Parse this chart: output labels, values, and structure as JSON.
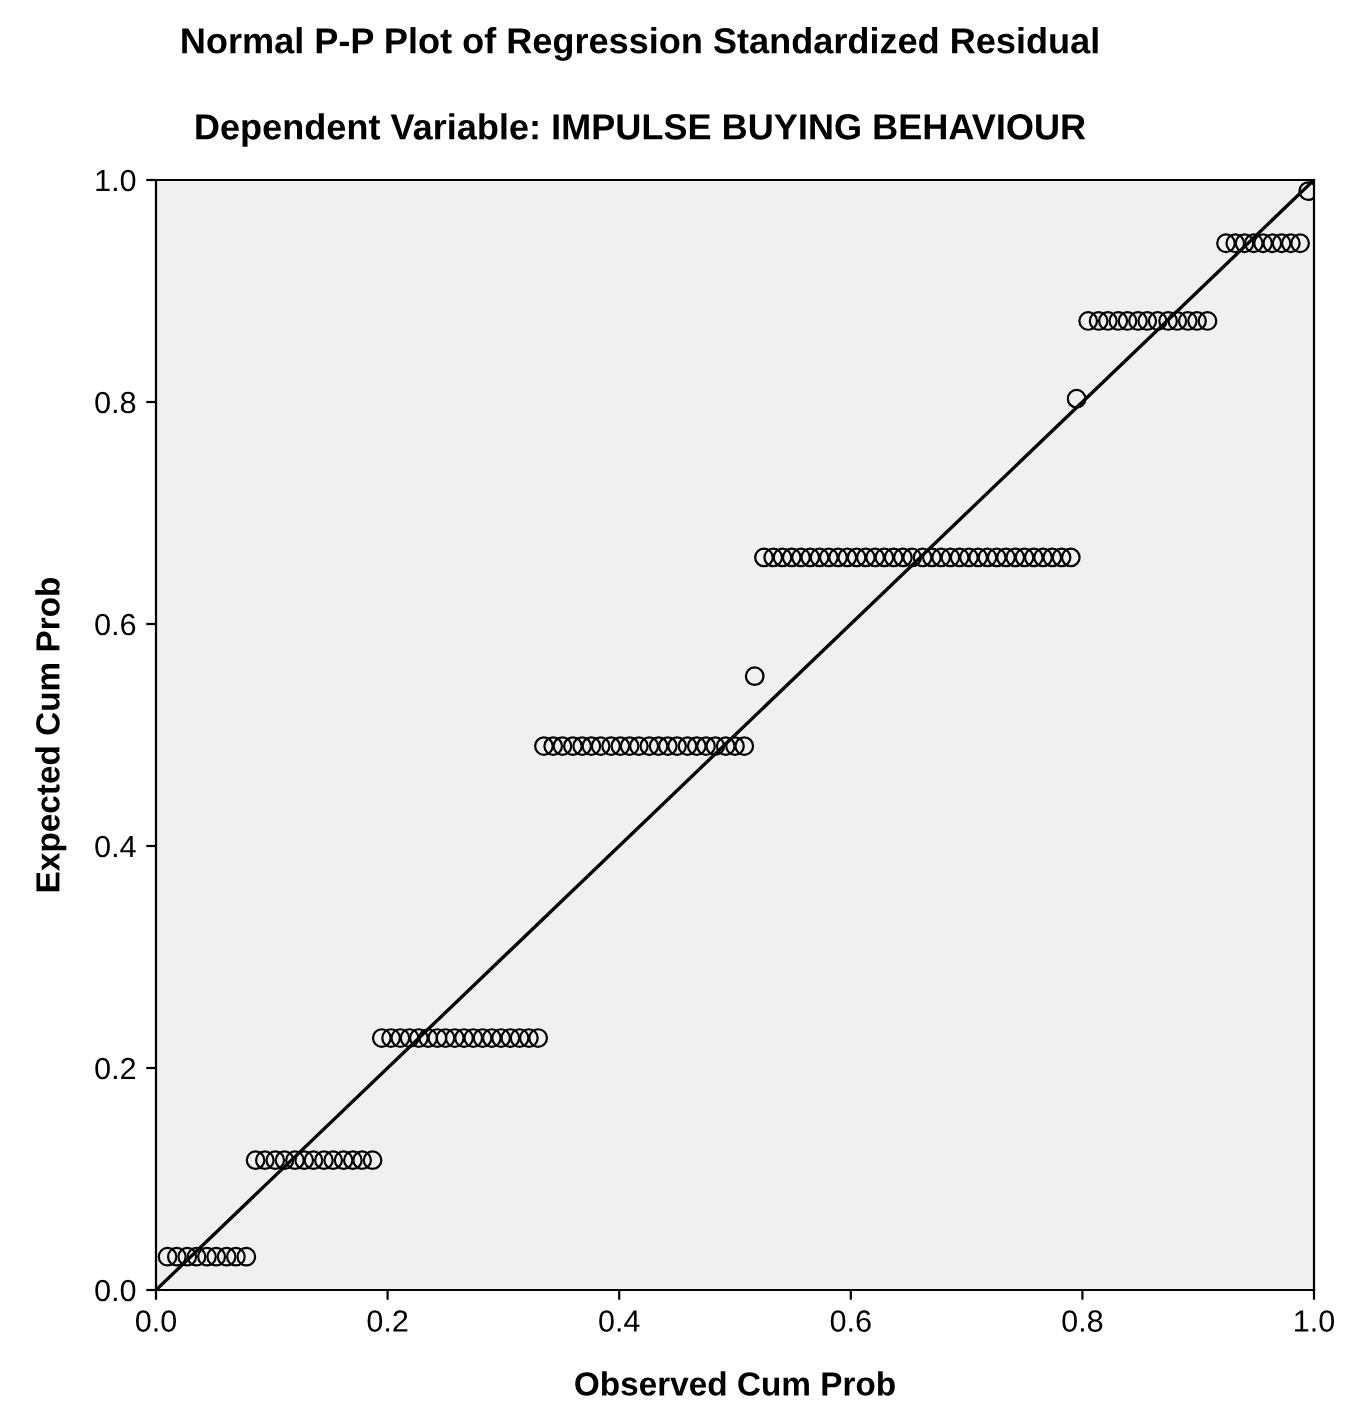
{
  "chart_data": {
    "type": "scatter",
    "title": "Normal P-P Plot of Regression Standardized Residual",
    "subtitle": "Dependent Variable: IMPULSE BUYING BEHAVIOUR",
    "xlabel": "Observed Cum Prob",
    "ylabel": "Expected Cum Prob",
    "xlim": [
      0,
      1
    ],
    "ylim": [
      0,
      1
    ],
    "xticks": [
      {
        "value": 0,
        "label": "0.0"
      },
      {
        "value": 0.2,
        "label": "0.2"
      },
      {
        "value": 0.4,
        "label": "0.4"
      },
      {
        "value": 0.6,
        "label": "0.6"
      },
      {
        "value": 0.8,
        "label": "0.8"
      },
      {
        "value": 1,
        "label": "1.0"
      }
    ],
    "yticks": [
      {
        "value": 0,
        "label": "0.0"
      },
      {
        "value": 0.2,
        "label": "0.2"
      },
      {
        "value": 0.4,
        "label": "0.4"
      },
      {
        "value": 0.6,
        "label": "0.6"
      },
      {
        "value": 0.8,
        "label": "0.8"
      },
      {
        "value": 1,
        "label": "1.0"
      }
    ],
    "grid": false,
    "legend": false,
    "series": [
      {
        "marker": "circle",
        "color": "#000000",
        "x": [
          0.01,
          0.018,
          0.027,
          0.035,
          0.044,
          0.052,
          0.061,
          0.069,
          0.078,
          0.086,
          0.094,
          0.103,
          0.111,
          0.12,
          0.128,
          0.136,
          0.145,
          0.153,
          0.162,
          0.17,
          0.178,
          0.187,
          0.195,
          0.203,
          0.211,
          0.219,
          0.227,
          0.235,
          0.243,
          0.25,
          0.258,
          0.266,
          0.274,
          0.282,
          0.29,
          0.298,
          0.306,
          0.314,
          0.322,
          0.33,
          0.335,
          0.343,
          0.351,
          0.36,
          0.368,
          0.376,
          0.384,
          0.393,
          0.401,
          0.409,
          0.417,
          0.426,
          0.434,
          0.442,
          0.45,
          0.459,
          0.467,
          0.475,
          0.483,
          0.492,
          0.5,
          0.508,
          0.517,
          0.525,
          0.533,
          0.541,
          0.549,
          0.557,
          0.565,
          0.573,
          0.581,
          0.589,
          0.597,
          0.605,
          0.613,
          0.621,
          0.629,
          0.637,
          0.645,
          0.653,
          0.662,
          0.67,
          0.678,
          0.686,
          0.694,
          0.702,
          0.71,
          0.718,
          0.726,
          0.734,
          0.742,
          0.75,
          0.758,
          0.766,
          0.774,
          0.782,
          0.79,
          0.795,
          0.805,
          0.814,
          0.822,
          0.831,
          0.839,
          0.848,
          0.856,
          0.865,
          0.874,
          0.882,
          0.891,
          0.899,
          0.908,
          0.924,
          0.932,
          0.94,
          0.948,
          0.956,
          0.964,
          0.972,
          0.98,
          0.988,
          0.995
        ],
        "values": [
          0.03,
          0.03,
          0.03,
          0.03,
          0.03,
          0.03,
          0.03,
          0.03,
          0.03,
          0.117,
          0.117,
          0.117,
          0.117,
          0.117,
          0.117,
          0.117,
          0.117,
          0.117,
          0.117,
          0.117,
          0.117,
          0.117,
          0.227,
          0.227,
          0.227,
          0.227,
          0.227,
          0.227,
          0.227,
          0.227,
          0.227,
          0.227,
          0.227,
          0.227,
          0.227,
          0.227,
          0.227,
          0.227,
          0.227,
          0.227,
          0.49,
          0.49,
          0.49,
          0.49,
          0.49,
          0.49,
          0.49,
          0.49,
          0.49,
          0.49,
          0.49,
          0.49,
          0.49,
          0.49,
          0.49,
          0.49,
          0.49,
          0.49,
          0.49,
          0.49,
          0.49,
          0.49,
          0.553,
          0.66,
          0.66,
          0.66,
          0.66,
          0.66,
          0.66,
          0.66,
          0.66,
          0.66,
          0.66,
          0.66,
          0.66,
          0.66,
          0.66,
          0.66,
          0.66,
          0.66,
          0.66,
          0.66,
          0.66,
          0.66,
          0.66,
          0.66,
          0.66,
          0.66,
          0.66,
          0.66,
          0.66,
          0.66,
          0.66,
          0.66,
          0.66,
          0.66,
          0.66,
          0.803,
          0.873,
          0.873,
          0.873,
          0.873,
          0.873,
          0.873,
          0.873,
          0.873,
          0.873,
          0.873,
          0.873,
          0.873,
          0.873,
          0.943,
          0.943,
          0.943,
          0.943,
          0.943,
          0.943,
          0.943,
          0.943,
          0.943,
          0.99
        ]
      },
      {
        "type": "line",
        "marker": "none",
        "color": "#000000",
        "x": [
          0,
          1
        ],
        "values": [
          0,
          1
        ]
      }
    ]
  }
}
